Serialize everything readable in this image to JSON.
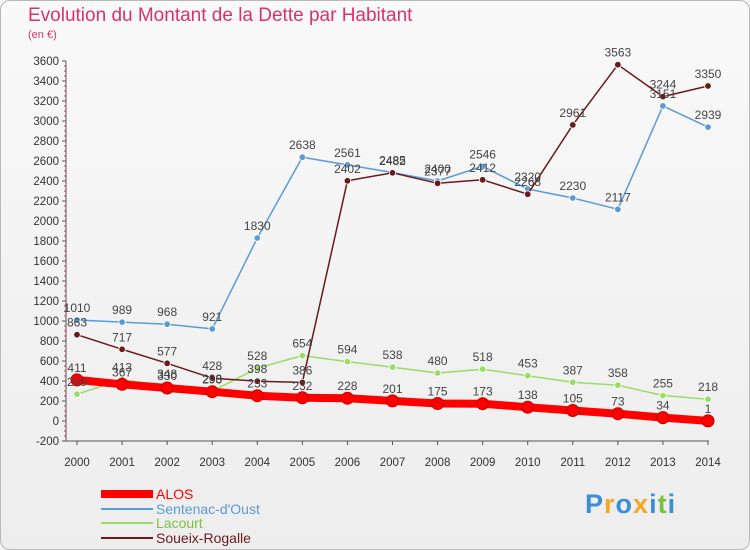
{
  "chart_data": {
    "type": "line",
    "title": "Evolution du Montant de la Dette par Habitant",
    "subtitle": "(en €)",
    "x": [
      "2000",
      "2001",
      "2002",
      "2003",
      "2004",
      "2005",
      "2006",
      "2007",
      "2008",
      "2009",
      "2010",
      "2011",
      "2012",
      "2013",
      "2014"
    ],
    "ylim": [
      -200,
      3600
    ],
    "yticks": [
      -200,
      0,
      200,
      400,
      600,
      800,
      1000,
      1200,
      1400,
      1600,
      1800,
      2000,
      2200,
      2400,
      2600,
      2800,
      3000,
      3200,
      3400,
      3600
    ],
    "grid": false,
    "legend_position": "bottom-left",
    "series": [
      {
        "name": "ALOS",
        "color": "#ff0000",
        "values": [
          411,
          367,
          330,
          293,
          253,
          232,
          228,
          201,
          175,
          173,
          138,
          105,
          73,
          34,
          1
        ]
      },
      {
        "name": "Sentenac-d'Oust",
        "color": "#5b9bd5",
        "values": [
          1010,
          989,
          968,
          921,
          1830,
          2638,
          2561,
          2485,
          2400,
          2546,
          2320,
          2230,
          2117,
          3151,
          2939
        ]
      },
      {
        "name": "Lacourt",
        "color": "#99dd66",
        "values": [
          269,
          413,
          348,
          298,
          528,
          654,
          594,
          538,
          480,
          518,
          453,
          387,
          358,
          255,
          218
        ]
      },
      {
        "name": "Soueix-Rogalle",
        "color": "#6b1a1a",
        "values": [
          863,
          717,
          577,
          428,
          398,
          386,
          2402,
          2482,
          2377,
          2412,
          2268,
          2961,
          3563,
          3244,
          3350
        ]
      }
    ]
  },
  "logo": {
    "text": "Proxiti",
    "colors": [
      "#3a8fd8",
      "#f5a623",
      "#3a8fd8",
      "#f5a623",
      "#3a8fd8",
      "#7ac142",
      "#3a8fd8"
    ]
  }
}
